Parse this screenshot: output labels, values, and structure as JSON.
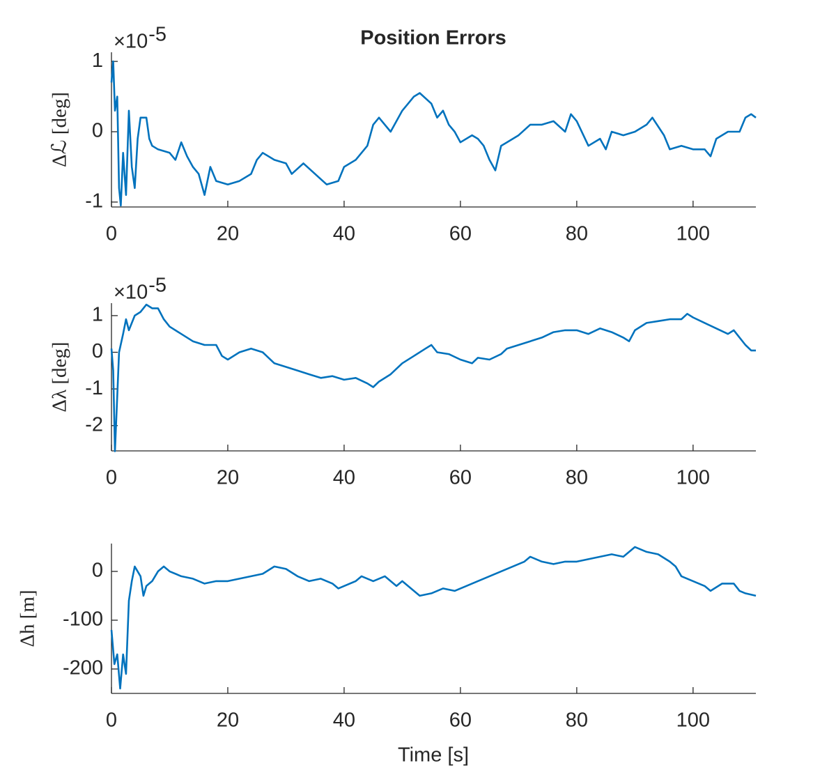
{
  "chart_data": [
    {
      "type": "line",
      "title": "Position Errors",
      "ylabel": "Δℒ [deg]",
      "multiplier": {
        "base": "×10",
        "exponent": "-5"
      },
      "xlim": [
        0,
        110.8
      ],
      "xticks": [
        0,
        20,
        40,
        60,
        80,
        100
      ],
      "ylim": [
        -1.07,
        1.13
      ],
      "yticks": [
        -1,
        0,
        1
      ],
      "x": [
        0,
        0.3,
        0.6,
        1,
        1.3,
        1.6,
        2,
        2.5,
        3,
        3.5,
        4,
        4.5,
        5,
        6,
        6.5,
        7,
        8,
        10,
        11,
        12,
        13,
        14,
        15,
        16,
        17,
        18,
        20,
        22,
        24,
        25,
        26,
        28,
        30,
        31,
        33,
        35,
        37,
        39,
        40,
        42,
        44,
        45,
        46,
        48,
        50,
        51,
        52,
        53,
        55,
        56,
        57,
        58,
        59,
        60,
        62,
        63,
        64,
        65,
        66,
        67,
        68,
        70,
        72,
        74,
        76,
        78,
        79,
        80,
        82,
        84,
        85,
        86,
        88,
        90,
        92,
        93,
        95,
        96,
        98,
        100,
        102,
        103,
        104,
        106,
        108,
        109,
        110,
        110.8
      ],
      "series": [
        {
          "color": "#0072bd",
          "values": [
            0.7,
            1,
            0.3,
            0.5,
            -0.8,
            -1.05,
            -0.3,
            -0.9,
            0.3,
            -0.5,
            -0.8,
            -0.1,
            0.2,
            0.2,
            -0.1,
            -0.2,
            -0.25,
            -0.3,
            -0.4,
            -0.15,
            -0.35,
            -0.5,
            -0.6,
            -0.9,
            -0.5,
            -0.7,
            -0.75,
            -0.7,
            -0.6,
            -0.4,
            -0.3,
            -0.4,
            -0.45,
            -0.6,
            -0.45,
            -0.6,
            -0.75,
            -0.7,
            -0.5,
            -0.4,
            -0.2,
            0.1,
            0.2,
            0,
            0.3,
            0.4,
            0.5,
            0.55,
            0.4,
            0.2,
            0.3,
            0.1,
            0,
            -0.15,
            -0.05,
            -0.1,
            -0.2,
            -0.4,
            -0.55,
            -0.2,
            -0.15,
            -0.05,
            0.1,
            0.1,
            0.15,
            0,
            0.25,
            0.15,
            -0.2,
            -0.1,
            -0.25,
            0,
            -0.05,
            0,
            0.1,
            0.2,
            -0.05,
            -0.25,
            -0.2,
            -0.25,
            -0.25,
            -0.35,
            -0.1,
            0,
            0,
            0.2,
            0.25,
            0.2
          ]
        }
      ]
    },
    {
      "type": "line",
      "ylabel": "Δλ [deg]",
      "multiplier": {
        "base": "×10",
        "exponent": "-5"
      },
      "xlim": [
        0,
        110.8
      ],
      "xticks": [
        0,
        20,
        40,
        60,
        80,
        100
      ],
      "ylim": [
        -2.69,
        1.34
      ],
      "yticks": [
        -2,
        -1,
        0,
        1
      ],
      "x": [
        0,
        0.3,
        0.6,
        1,
        1.3,
        2,
        2.5,
        3,
        4,
        5,
        6,
        7,
        8,
        9,
        10,
        12,
        14,
        16,
        18,
        19,
        20,
        22,
        24,
        26,
        28,
        30,
        32,
        34,
        36,
        38,
        40,
        42,
        44,
        45,
        46,
        48,
        50,
        52,
        54,
        55,
        56,
        58,
        60,
        62,
        63,
        65,
        67,
        68,
        70,
        72,
        74,
        76,
        78,
        80,
        82,
        84,
        86,
        88,
        89,
        90,
        92,
        94,
        96,
        98,
        99,
        100,
        102,
        104,
        106,
        107,
        108,
        109,
        110,
        110.8
      ],
      "series": [
        {
          "color": "#0072bd",
          "values": [
            0.1,
            -0.5,
            -2.7,
            -1.2,
            0,
            0.5,
            0.9,
            0.6,
            1,
            1.1,
            1.3,
            1.2,
            1.2,
            0.9,
            0.7,
            0.5,
            0.3,
            0.2,
            0.2,
            -0.1,
            -0.2,
            0,
            0.1,
            0,
            -0.3,
            -0.4,
            -0.5,
            -0.6,
            -0.7,
            -0.65,
            -0.75,
            -0.7,
            -0.85,
            -0.95,
            -0.8,
            -0.6,
            -0.3,
            -0.1,
            0.1,
            0.2,
            0,
            -0.05,
            -0.2,
            -0.3,
            -0.15,
            -0.2,
            -0.05,
            0.1,
            0.2,
            0.3,
            0.4,
            0.55,
            0.6,
            0.6,
            0.5,
            0.65,
            0.55,
            0.4,
            0.3,
            0.6,
            0.8,
            0.85,
            0.9,
            0.9,
            1.05,
            0.95,
            0.8,
            0.65,
            0.5,
            0.6,
            0.4,
            0.2,
            0.05,
            0.05
          ]
        }
      ]
    },
    {
      "type": "line",
      "ylabel": "Δh [m]",
      "xlabel": "Time [s]",
      "xlim": [
        0,
        110.8
      ],
      "xticks": [
        0,
        20,
        40,
        60,
        80,
        100
      ],
      "ylim": [
        -250,
        57
      ],
      "yticks": [
        -200,
        -100,
        0
      ],
      "x": [
        0,
        0.5,
        1,
        1.5,
        2,
        2.5,
        3,
        3.5,
        4,
        5,
        5.5,
        6,
        7,
        8,
        9,
        10,
        12,
        14,
        16,
        18,
        20,
        22,
        24,
        26,
        28,
        30,
        32,
        34,
        36,
        38,
        39,
        40,
        42,
        43,
        45,
        47,
        49,
        50,
        52,
        53,
        55,
        57,
        59,
        61,
        63,
        65,
        67,
        69,
        71,
        72,
        74,
        76,
        78,
        80,
        82,
        84,
        86,
        88,
        90,
        92,
        94,
        96,
        97,
        98,
        100,
        102,
        103,
        105,
        107,
        108,
        109,
        110.8
      ],
      "series": [
        {
          "color": "#0072bd",
          "values": [
            -120,
            -190,
            -170,
            -240,
            -170,
            -210,
            -60,
            -20,
            10,
            -10,
            -50,
            -30,
            -20,
            0,
            10,
            0,
            -10,
            -15,
            -25,
            -20,
            -20,
            -15,
            -10,
            -5,
            10,
            5,
            -10,
            -20,
            -15,
            -25,
            -35,
            -30,
            -20,
            -10,
            -20,
            -10,
            -30,
            -20,
            -40,
            -50,
            -45,
            -35,
            -40,
            -30,
            -20,
            -10,
            0,
            10,
            20,
            30,
            20,
            15,
            20,
            20,
            25,
            30,
            35,
            30,
            50,
            40,
            35,
            20,
            10,
            -10,
            -20,
            -30,
            -40,
            -25,
            -25,
            -40,
            -45,
            -50
          ]
        }
      ]
    }
  ]
}
